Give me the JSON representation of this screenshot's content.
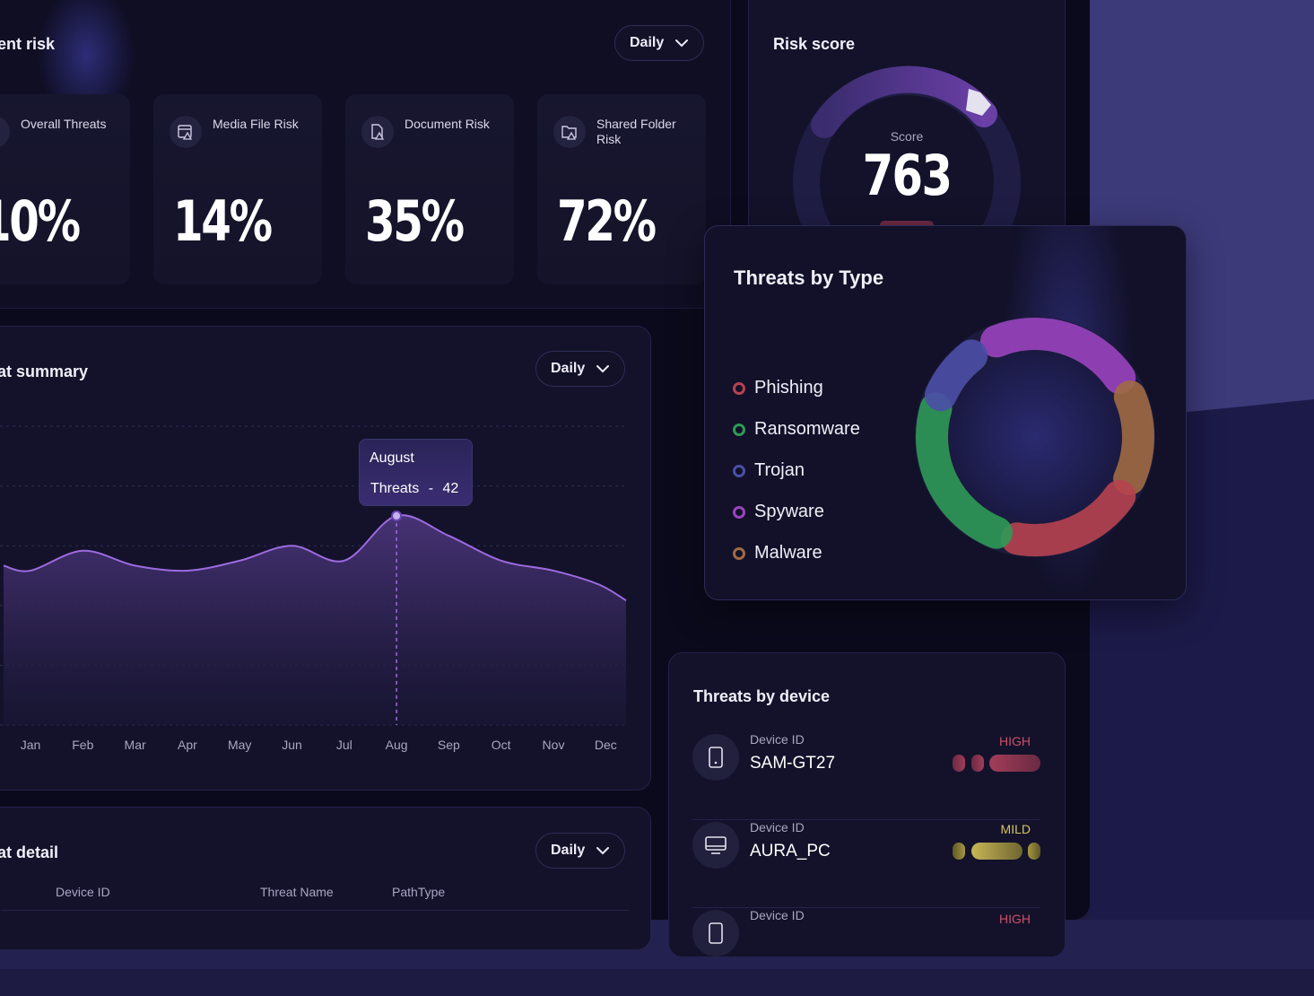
{
  "risk_panel": {
    "title": "ent risk",
    "period": "Daily",
    "tiles": [
      {
        "label": "Overall Threats",
        "value": "10%",
        "icon": "shield-icon"
      },
      {
        "label": "Media File Risk",
        "value": "14%",
        "icon": "media-file-warning-icon"
      },
      {
        "label": "Document Risk",
        "value": "35%",
        "icon": "document-warning-icon"
      },
      {
        "label": "Shared Folder Risk",
        "value": "72%",
        "icon": "folder-warning-icon"
      }
    ]
  },
  "risk_score": {
    "title": "Risk score",
    "label": "Score",
    "value": "763"
  },
  "summary": {
    "title": "at summary",
    "period": "Daily",
    "tooltip": {
      "month": "August",
      "series": "Threats",
      "separator": "-",
      "value": "42"
    },
    "chart_data": {
      "type": "area",
      "categories": [
        "Jan",
        "Feb",
        "Mar",
        "Apr",
        "May",
        "Jun",
        "Jul",
        "Aug",
        "Sep",
        "Oct",
        "Nov",
        "Dec"
      ],
      "series": [
        {
          "name": "Threats",
          "values": [
            31,
            35,
            32,
            31,
            33,
            36,
            33,
            42,
            38,
            33,
            31,
            25
          ]
        }
      ],
      "ylim": [
        0,
        60
      ],
      "grid": true,
      "highlight": "Aug",
      "colors": {
        "line": "#9d6be0",
        "fill_top": "#4a3479",
        "fill_bottom": "#1a1736",
        "grid": "#2e2c52"
      }
    }
  },
  "threat_types": {
    "title": "Threats by Type",
    "items": [
      {
        "name": "Phishing",
        "color": "#b7424f"
      },
      {
        "name": "Ransomware",
        "color": "#2f9a57"
      },
      {
        "name": "Trojan",
        "color": "#4b4fa6"
      },
      {
        "name": "Spyware",
        "color": "#9a44bf"
      },
      {
        "name": "Malware",
        "color": "#a06a44"
      }
    ]
  },
  "devices": {
    "title": "Threats by device",
    "rows": [
      {
        "label": "Device ID",
        "id": "SAM-GT27",
        "level": "HIGH",
        "icon": "smartphone-icon",
        "color": "#cf4e65"
      },
      {
        "label": "Device ID",
        "id": "AURA_PC",
        "level": "MILD",
        "icon": "desktop-icon",
        "color": "#d6c25e"
      },
      {
        "label": "Device ID",
        "id": "",
        "level": "HIGH",
        "icon": "smartphone-icon",
        "color": "#cf4e65"
      }
    ]
  },
  "detail": {
    "title": "at detail",
    "period": "Daily",
    "columns": [
      "Device ID",
      "Threat Name",
      "PathType"
    ]
  }
}
